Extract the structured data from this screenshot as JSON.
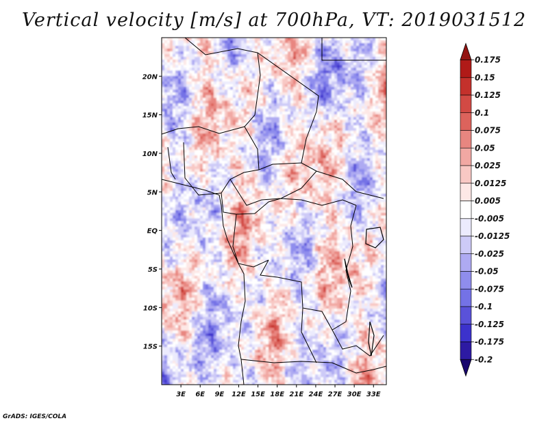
{
  "title": "Vertical velocity [m/s] at 700hPa, VT: 2019031512",
  "credit": "GrADS: IGES/COLA",
  "colors": {
    "border": "#000000",
    "palette": [
      "#18066e",
      "#2d1aa3",
      "#3c32cc",
      "#5a52d9",
      "#7472e6",
      "#8f8ded",
      "#aeaaf2",
      "#cdcaf7",
      "#ecebfd",
      "#ffffff",
      "#fde8e6",
      "#f8c8c4",
      "#f1a8a3",
      "#e88680",
      "#dc635c",
      "#d24a44",
      "#c4312c",
      "#b01a18",
      "#931412"
    ]
  },
  "chart_data": {
    "type": "heatmap",
    "title": "Vertical velocity [m/s] at 700hPa, VT: 2019031512",
    "variable": "Vertical velocity",
    "units": "m/s",
    "level": "700hPa",
    "valid_time": "2019031512",
    "lon_range": [
      0,
      35
    ],
    "lat_range": [
      -20,
      25
    ],
    "x_ticks": [
      {
        "value": 3,
        "label": "3E"
      },
      {
        "value": 6,
        "label": "6E"
      },
      {
        "value": 9,
        "label": "9E"
      },
      {
        "value": 12,
        "label": "12E"
      },
      {
        "value": 15,
        "label": "15E"
      },
      {
        "value": 18,
        "label": "18E"
      },
      {
        "value": 21,
        "label": "21E"
      },
      {
        "value": 24,
        "label": "24E"
      },
      {
        "value": 27,
        "label": "27E"
      },
      {
        "value": 30,
        "label": "30E"
      },
      {
        "value": 33,
        "label": "33E"
      }
    ],
    "y_ticks": [
      {
        "value": 20,
        "label": "20N"
      },
      {
        "value": 15,
        "label": "15N"
      },
      {
        "value": 10,
        "label": "10N"
      },
      {
        "value": 5,
        "label": "5N"
      },
      {
        "value": 0,
        "label": "EQ"
      },
      {
        "value": -5,
        "label": "5S"
      },
      {
        "value": -10,
        "label": "10S"
      },
      {
        "value": -15,
        "label": "15S"
      }
    ],
    "colorbar_labels": [
      "0.175",
      "0.15",
      "0.125",
      "0.1",
      "0.075",
      "0.05",
      "0.025",
      "0.0125",
      "0.005",
      "-0.005",
      "-0.0125",
      "-0.025",
      "-0.05",
      "-0.075",
      "-0.1",
      "-0.125",
      "-0.175",
      "-0.2"
    ],
    "colorbar_levels": [
      0.175,
      0.15,
      0.125,
      0.1,
      0.075,
      0.05,
      0.025,
      0.0125,
      0.005,
      -0.005,
      -0.0125,
      -0.025,
      -0.05,
      -0.075,
      -0.1,
      -0.125,
      -0.175,
      -0.2
    ]
  }
}
